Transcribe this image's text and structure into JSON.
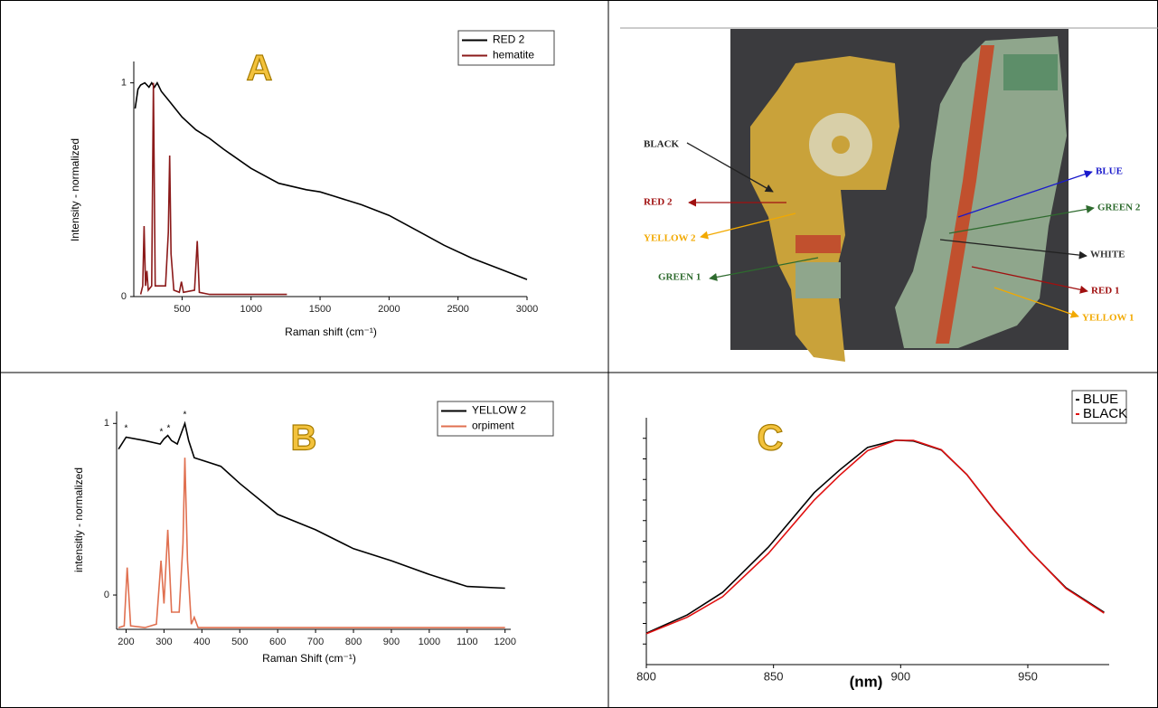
{
  "chart_data": [
    {
      "type": "line",
      "panel_label": "A",
      "xlabel": "Raman shift (cm⁻¹)",
      "ylabel": "Intensity - normalized",
      "xlim": [
        150,
        3000
      ],
      "ylim": [
        0,
        1.1
      ],
      "xticks": [
        500,
        1000,
        1500,
        2000,
        2500,
        3000
      ],
      "yticks": [
        0,
        1
      ],
      "legend": "top-right",
      "series": [
        {
          "name": "RED 2",
          "color": "#000000",
          "x": [
            160,
            180,
            200,
            230,
            260,
            280,
            300,
            320,
            350,
            400,
            500,
            600,
            700,
            800,
            1000,
            1200,
            1400,
            1500,
            1600,
            1800,
            2000,
            2200,
            2400,
            2600,
            2800,
            3000
          ],
          "values": [
            0.88,
            0.97,
            0.99,
            1.0,
            0.98,
            1.0,
            0.98,
            1.0,
            0.96,
            0.92,
            0.84,
            0.78,
            0.74,
            0.69,
            0.6,
            0.53,
            0.5,
            0.49,
            0.47,
            0.43,
            0.38,
            0.31,
            0.24,
            0.18,
            0.13,
            0.08
          ]
        },
        {
          "name": "hematite",
          "color": "#8b1a1a",
          "x": [
            200,
            215,
            225,
            235,
            245,
            255,
            280,
            292,
            305,
            380,
            400,
            410,
            420,
            440,
            480,
            495,
            510,
            590,
            610,
            625,
            700,
            1000,
            1260
          ],
          "values": [
            0.01,
            0.05,
            0.33,
            0.05,
            0.12,
            0.03,
            0.05,
            1.0,
            0.05,
            0.05,
            0.3,
            0.66,
            0.2,
            0.03,
            0.02,
            0.07,
            0.02,
            0.03,
            0.26,
            0.02,
            0.01,
            0.01,
            0.01
          ]
        }
      ]
    },
    {
      "type": "line",
      "panel_label": "B",
      "xlabel": "Raman Shift (cm⁻¹)",
      "ylabel": "intensitiy - normalized",
      "xlim": [
        175,
        1215
      ],
      "ylim": [
        -0.2,
        1.07
      ],
      "xticks": [
        200,
        300,
        400,
        500,
        600,
        700,
        800,
        900,
        1000,
        1100,
        1200
      ],
      "yticks": [
        0,
        1
      ],
      "legend": "top-right",
      "annotations": [
        {
          "x": 200,
          "y": 0.97,
          "text": "*"
        },
        {
          "x": 293,
          "y": 0.95,
          "text": "*"
        },
        {
          "x": 312,
          "y": 0.97,
          "text": "*"
        },
        {
          "x": 355,
          "y": 1.05,
          "text": "*"
        }
      ],
      "series": [
        {
          "name": "YELLOW 2",
          "color": "#000000",
          "x": [
            180,
            200,
            250,
            290,
            300,
            310,
            320,
            335,
            350,
            355,
            365,
            380,
            450,
            500,
            600,
            700,
            800,
            900,
            1000,
            1100,
            1200
          ],
          "values": [
            0.85,
            0.92,
            0.9,
            0.88,
            0.91,
            0.93,
            0.9,
            0.88,
            0.97,
            1.0,
            0.9,
            0.8,
            0.75,
            0.65,
            0.47,
            0.38,
            0.27,
            0.2,
            0.12,
            0.05,
            0.04
          ]
        },
        {
          "name": "orpiment",
          "color": "#e07050",
          "x": [
            180,
            195,
            203,
            212,
            250,
            280,
            292,
            300,
            310,
            320,
            340,
            350,
            355,
            362,
            372,
            380,
            390,
            400,
            1200
          ],
          "values": [
            -0.19,
            -0.18,
            0.16,
            -0.18,
            -0.19,
            -0.17,
            0.2,
            -0.05,
            0.38,
            -0.1,
            -0.1,
            0.3,
            0.8,
            0.2,
            -0.17,
            -0.13,
            -0.19,
            -0.19,
            -0.19
          ]
        }
      ]
    },
    {
      "type": "line",
      "panel_label": "C",
      "xlabel": "(nm)",
      "xlim": [
        800,
        982
      ],
      "ylim": [
        -1,
        11
      ],
      "xticks": [
        800,
        850,
        900,
        950
      ],
      "yticks": [
        0,
        1,
        2,
        3,
        4,
        5,
        6,
        7,
        8,
        9,
        10
      ],
      "ytick_labels": false,
      "legend": "top-right",
      "series": [
        {
          "name": "BLUE",
          "color": "#000000",
          "x": [
            800,
            816,
            830,
            848,
            866,
            876,
            887,
            898,
            905,
            916,
            926,
            937,
            951,
            965,
            980
          ],
          "values": [
            0.53,
            1.41,
            2.51,
            4.71,
            7.36,
            8.46,
            9.56,
            9.91,
            9.87,
            9.43,
            8.24,
            6.48,
            4.49,
            2.73,
            1.54
          ]
        },
        {
          "name": "BLACK",
          "color": "#e01010",
          "x": [
            800,
            816,
            830,
            848,
            866,
            876,
            887,
            898,
            905,
            916,
            926,
            937,
            951,
            965,
            980
          ],
          "values": [
            0.5,
            1.3,
            2.3,
            4.4,
            7.0,
            8.2,
            9.4,
            9.9,
            9.9,
            9.45,
            8.24,
            6.5,
            4.5,
            2.7,
            1.5
          ]
        }
      ]
    }
  ],
  "photo": {
    "labels": [
      {
        "text": "BLACK",
        "color": "#222222"
      },
      {
        "text": "RED 2",
        "color": "#a01010"
      },
      {
        "text": "YELLOW 2",
        "color": "#f2a900"
      },
      {
        "text": "GREEN 1",
        "color": "#2e6b2e"
      },
      {
        "text": "BLUE",
        "color": "#1a1acc"
      },
      {
        "text": "GREEN 2",
        "color": "#2e6b2e"
      },
      {
        "text": "WHITE",
        "color": "#333333"
      },
      {
        "text": "RED 1",
        "color": "#a01010"
      },
      {
        "text": "YELLOW 1",
        "color": "#f2a900"
      }
    ]
  }
}
